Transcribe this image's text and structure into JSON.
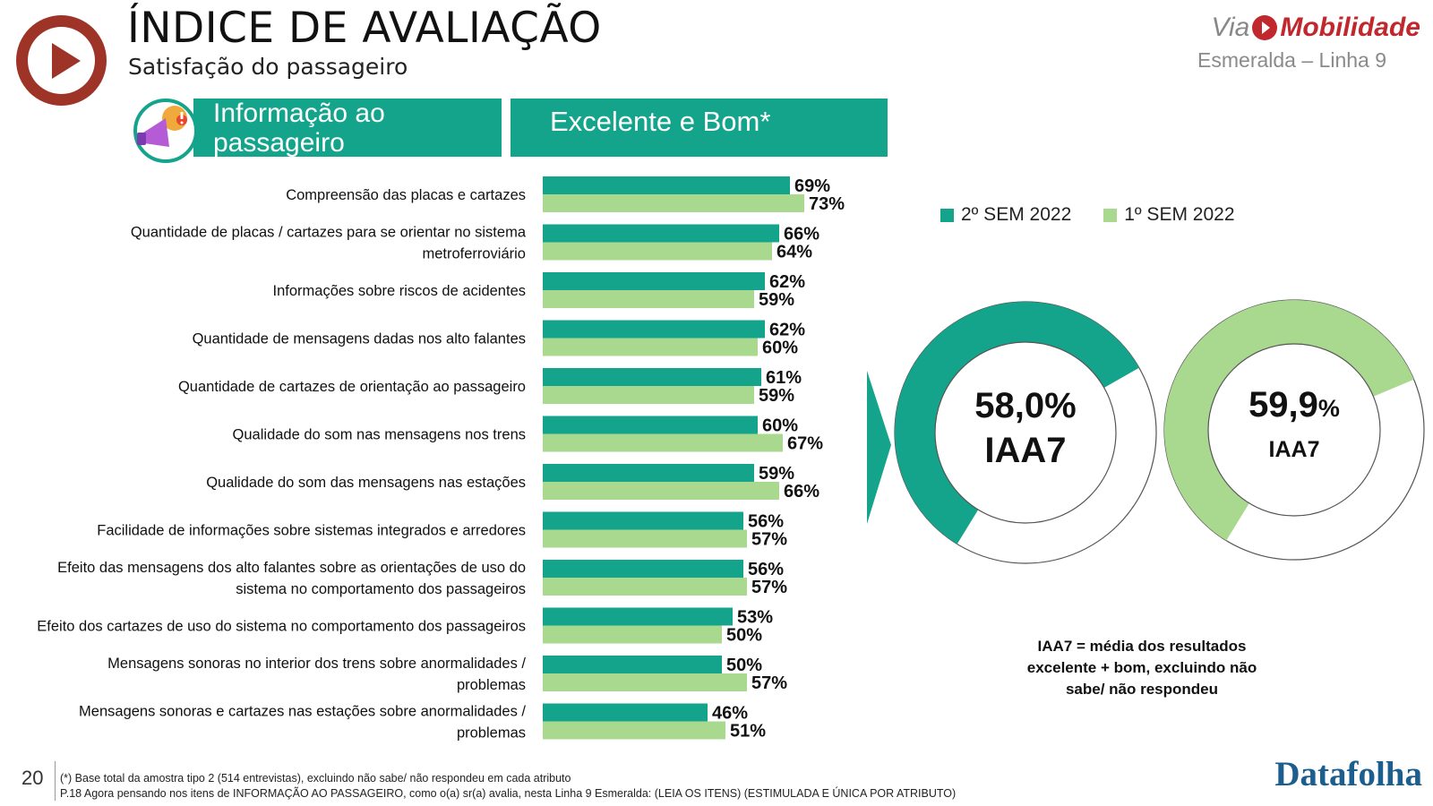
{
  "header": {
    "title": "ÍNDICE DE AVALIAÇÃO",
    "subtitle": "Satisfação do passageiro",
    "brand_via": "Via",
    "brand_name": "Mobilidade",
    "brand_line": "Esmeralda – Linha 9"
  },
  "section": {
    "topic_line1": "Informação ao",
    "topic_line2": "passageiro",
    "metric": "Excelente e Bom*"
  },
  "colors": {
    "series_2sem": "#14a48c",
    "series_1sem": "#a9d88f",
    "donut_rest": "#ffffff",
    "accent": "#14a48c"
  },
  "chart_data": [
    {
      "type": "bar",
      "orientation": "horizontal",
      "categories": [
        "Compreensão das placas e cartazes",
        "Quantidade de placas / cartazes para se orientar no sistema metroferroviário",
        "Informações sobre riscos de acidentes",
        "Quantidade de mensagens dadas nos alto falantes",
        "Quantidade de cartazes de orientação ao passageiro",
        "Qualidade do som nas mensagens nos trens",
        "Qualidade do som das mensagens nas estações",
        "Facilidade de informações sobre sistemas integrados e arredores",
        "Efeito das mensagens dos alto falantes sobre as orientações de uso do sistema no comportamento dos passageiros",
        "Efeito dos cartazes de uso do sistema no comportamento dos passageiros",
        "Mensagens sonoras no interior dos trens sobre anormalidades / problemas",
        "Mensagens sonoras e cartazes nas estações sobre anormalidades / problemas"
      ],
      "category_lines": [
        [
          "Compreensão das placas e cartazes"
        ],
        [
          "Quantidade de placas / cartazes para se orientar no sistema",
          "metroferroviário"
        ],
        [
          "Informações sobre riscos de acidentes"
        ],
        [
          "Quantidade de mensagens dadas nos alto falantes"
        ],
        [
          "Quantidade de cartazes de orientação ao passageiro"
        ],
        [
          "Qualidade do som nas mensagens nos trens"
        ],
        [
          "Qualidade do som das mensagens nas estações"
        ],
        [
          "Facilidade de informações sobre sistemas integrados e arredores"
        ],
        [
          "Efeito das mensagens dos alto falantes sobre as orientações de uso do",
          "sistema no comportamento dos passageiros"
        ],
        [
          "Efeito dos cartazes de uso do sistema no comportamento dos passageiros"
        ],
        [
          "Mensagens sonoras no interior dos trens sobre anormalidades /",
          "problemas"
        ],
        [
          "Mensagens sonoras e cartazes nas estações sobre anormalidades /",
          "problemas"
        ]
      ],
      "series": [
        {
          "name": "2º SEM 2022",
          "values": [
            69,
            66,
            62,
            62,
            61,
            60,
            59,
            56,
            56,
            53,
            50,
            46
          ]
        },
        {
          "name": "1º SEM 2022",
          "values": [
            73,
            64,
            59,
            60,
            59,
            67,
            66,
            57,
            57,
            50,
            57,
            51
          ]
        }
      ],
      "value_suffix": "%",
      "xlim": [
        0,
        100
      ],
      "legend": "top-right",
      "grid": false
    },
    {
      "type": "pie",
      "variant": "donut",
      "series_name": "2º SEM 2022",
      "value": 58.0,
      "value_label": "58,0%",
      "label": "IAA7"
    },
    {
      "type": "pie",
      "variant": "donut",
      "series_name": "1º SEM 2022",
      "value": 59.9,
      "value_label_num": "59,9",
      "value_label_pct": "%",
      "label": "IAA7"
    }
  ],
  "note": {
    "line1": "IAA7 = média dos resultados",
    "line2": "excelente + bom, excluindo não",
    "line3": "sabe/ não respondeu"
  },
  "footer": {
    "page_number": "20",
    "footnote1": "(*) Base total da amostra tipo 2 (514 entrevistas), excluindo não sabe/ não respondeu em cada atributo",
    "footnote2": "P.18 Agora pensando nos itens de INFORMAÇÃO AO PASSAGEIRO, como o(a) sr(a) avalia, nesta Linha 9 Esmeralda: (LEIA OS ITENS) (ESTIMULADA E ÚNICA POR ATRIBUTO)",
    "source_logo": "Datafolha"
  }
}
